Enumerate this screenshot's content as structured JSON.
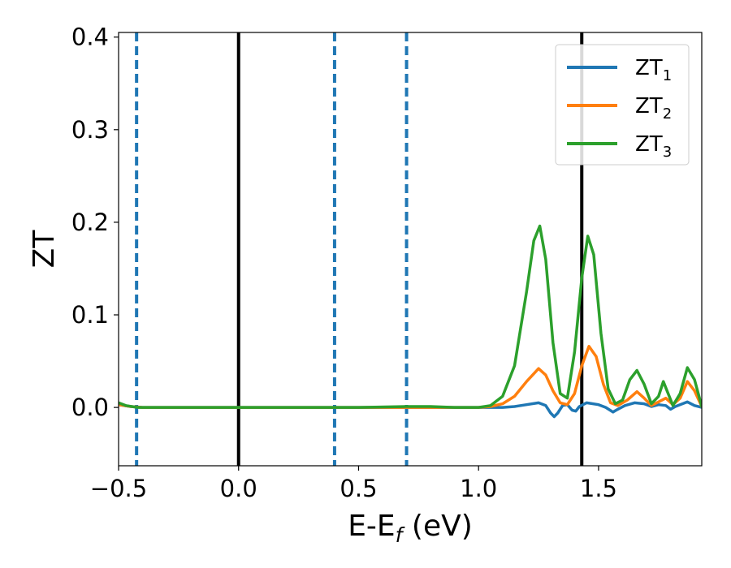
{
  "chart_data": {
    "type": "line",
    "title": "",
    "xlabel": {
      "main": "E-E",
      "sub": "f",
      "rest": " (eV)"
    },
    "ylabel": "ZT",
    "xlim": [
      -0.5,
      1.93
    ],
    "ylim": [
      -0.063,
      0.405
    ],
    "xticks": [
      {
        "value": -0.5,
        "label": "−0.5"
      },
      {
        "value": 0.0,
        "label": "0.0"
      },
      {
        "value": 0.5,
        "label": "0.5"
      },
      {
        "value": 1.0,
        "label": "1.0"
      },
      {
        "value": 1.5,
        "label": "1.5"
      }
    ],
    "yticks": [
      {
        "value": 0.0,
        "label": "0.0"
      },
      {
        "value": 0.1,
        "label": "0.1"
      },
      {
        "value": 0.2,
        "label": "0.2"
      },
      {
        "value": 0.3,
        "label": "0.3"
      },
      {
        "value": 0.4,
        "label": "0.4"
      }
    ],
    "grid": false,
    "legend_position": "top-right",
    "vertical_lines": [
      {
        "x": -0.425,
        "style": "dashed",
        "color": "#1f77b4"
      },
      {
        "x": 0.0,
        "style": "solid",
        "color": "#000000"
      },
      {
        "x": 0.4,
        "style": "dashed",
        "color": "#1f77b4"
      },
      {
        "x": 0.7,
        "style": "dashed",
        "color": "#1f77b4"
      },
      {
        "x": 1.43,
        "style": "solid",
        "color": "#000000"
      }
    ],
    "series": [
      {
        "name": "ZT",
        "sub": "1",
        "color": "#1f77b4",
        "points": [
          [
            -0.5,
            0.003
          ],
          [
            -0.45,
            0.001
          ],
          [
            -0.4,
            0.0
          ],
          [
            1.0,
            0.0
          ],
          [
            1.1,
            0.0
          ],
          [
            1.15,
            0.001
          ],
          [
            1.2,
            0.003
          ],
          [
            1.25,
            0.005
          ],
          [
            1.28,
            0.002
          ],
          [
            1.3,
            -0.006
          ],
          [
            1.315,
            -0.01
          ],
          [
            1.33,
            -0.006
          ],
          [
            1.35,
            0.002
          ],
          [
            1.37,
            0.003
          ],
          [
            1.39,
            -0.003
          ],
          [
            1.405,
            -0.004
          ],
          [
            1.42,
            0.001
          ],
          [
            1.45,
            0.005
          ],
          [
            1.5,
            0.003
          ],
          [
            1.53,
            0.0
          ],
          [
            1.56,
            -0.005
          ],
          [
            1.58,
            -0.002
          ],
          [
            1.61,
            0.002
          ],
          [
            1.65,
            0.005
          ],
          [
            1.69,
            0.004
          ],
          [
            1.72,
            0.001
          ],
          [
            1.75,
            0.003
          ],
          [
            1.78,
            0.002
          ],
          [
            1.8,
            -0.002
          ],
          [
            1.82,
            0.001
          ],
          [
            1.87,
            0.006
          ],
          [
            1.9,
            0.002
          ],
          [
            1.93,
            0.0
          ]
        ]
      },
      {
        "name": "ZT",
        "sub": "2",
        "color": "#ff7f0e",
        "points": [
          [
            -0.5,
            0.003
          ],
          [
            -0.45,
            0.001
          ],
          [
            -0.4,
            0.0
          ],
          [
            1.0,
            0.0
          ],
          [
            1.05,
            0.001
          ],
          [
            1.1,
            0.004
          ],
          [
            1.15,
            0.012
          ],
          [
            1.2,
            0.028
          ],
          [
            1.25,
            0.042
          ],
          [
            1.28,
            0.035
          ],
          [
            1.31,
            0.018
          ],
          [
            1.34,
            0.005
          ],
          [
            1.37,
            0.003
          ],
          [
            1.4,
            0.015
          ],
          [
            1.43,
            0.045
          ],
          [
            1.46,
            0.066
          ],
          [
            1.49,
            0.055
          ],
          [
            1.52,
            0.025
          ],
          [
            1.55,
            0.005
          ],
          [
            1.58,
            0.002
          ],
          [
            1.62,
            0.008
          ],
          [
            1.66,
            0.017
          ],
          [
            1.69,
            0.01
          ],
          [
            1.72,
            0.002
          ],
          [
            1.75,
            0.006
          ],
          [
            1.78,
            0.01
          ],
          [
            1.81,
            0.003
          ],
          [
            1.84,
            0.01
          ],
          [
            1.87,
            0.028
          ],
          [
            1.9,
            0.018
          ],
          [
            1.93,
            0.001
          ]
        ]
      },
      {
        "name": "ZT",
        "sub": "3",
        "color": "#2ca02c",
        "points": [
          [
            -0.5,
            0.005
          ],
          [
            -0.47,
            0.002
          ],
          [
            -0.42,
            0.0
          ],
          [
            0.5,
            0.0
          ],
          [
            0.7,
            0.001
          ],
          [
            0.8,
            0.001
          ],
          [
            0.9,
            0.0
          ],
          [
            1.0,
            0.0
          ],
          [
            1.05,
            0.002
          ],
          [
            1.1,
            0.012
          ],
          [
            1.15,
            0.045
          ],
          [
            1.2,
            0.125
          ],
          [
            1.23,
            0.18
          ],
          [
            1.255,
            0.196
          ],
          [
            1.28,
            0.16
          ],
          [
            1.31,
            0.07
          ],
          [
            1.34,
            0.015
          ],
          [
            1.37,
            0.01
          ],
          [
            1.4,
            0.06
          ],
          [
            1.43,
            0.14
          ],
          [
            1.455,
            0.185
          ],
          [
            1.48,
            0.165
          ],
          [
            1.51,
            0.08
          ],
          [
            1.54,
            0.02
          ],
          [
            1.57,
            0.004
          ],
          [
            1.6,
            0.008
          ],
          [
            1.63,
            0.03
          ],
          [
            1.66,
            0.04
          ],
          [
            1.69,
            0.025
          ],
          [
            1.72,
            0.004
          ],
          [
            1.75,
            0.012
          ],
          [
            1.77,
            0.028
          ],
          [
            1.79,
            0.015
          ],
          [
            1.81,
            0.002
          ],
          [
            1.84,
            0.015
          ],
          [
            1.87,
            0.043
          ],
          [
            1.9,
            0.03
          ],
          [
            1.93,
            0.001
          ]
        ]
      }
    ]
  }
}
